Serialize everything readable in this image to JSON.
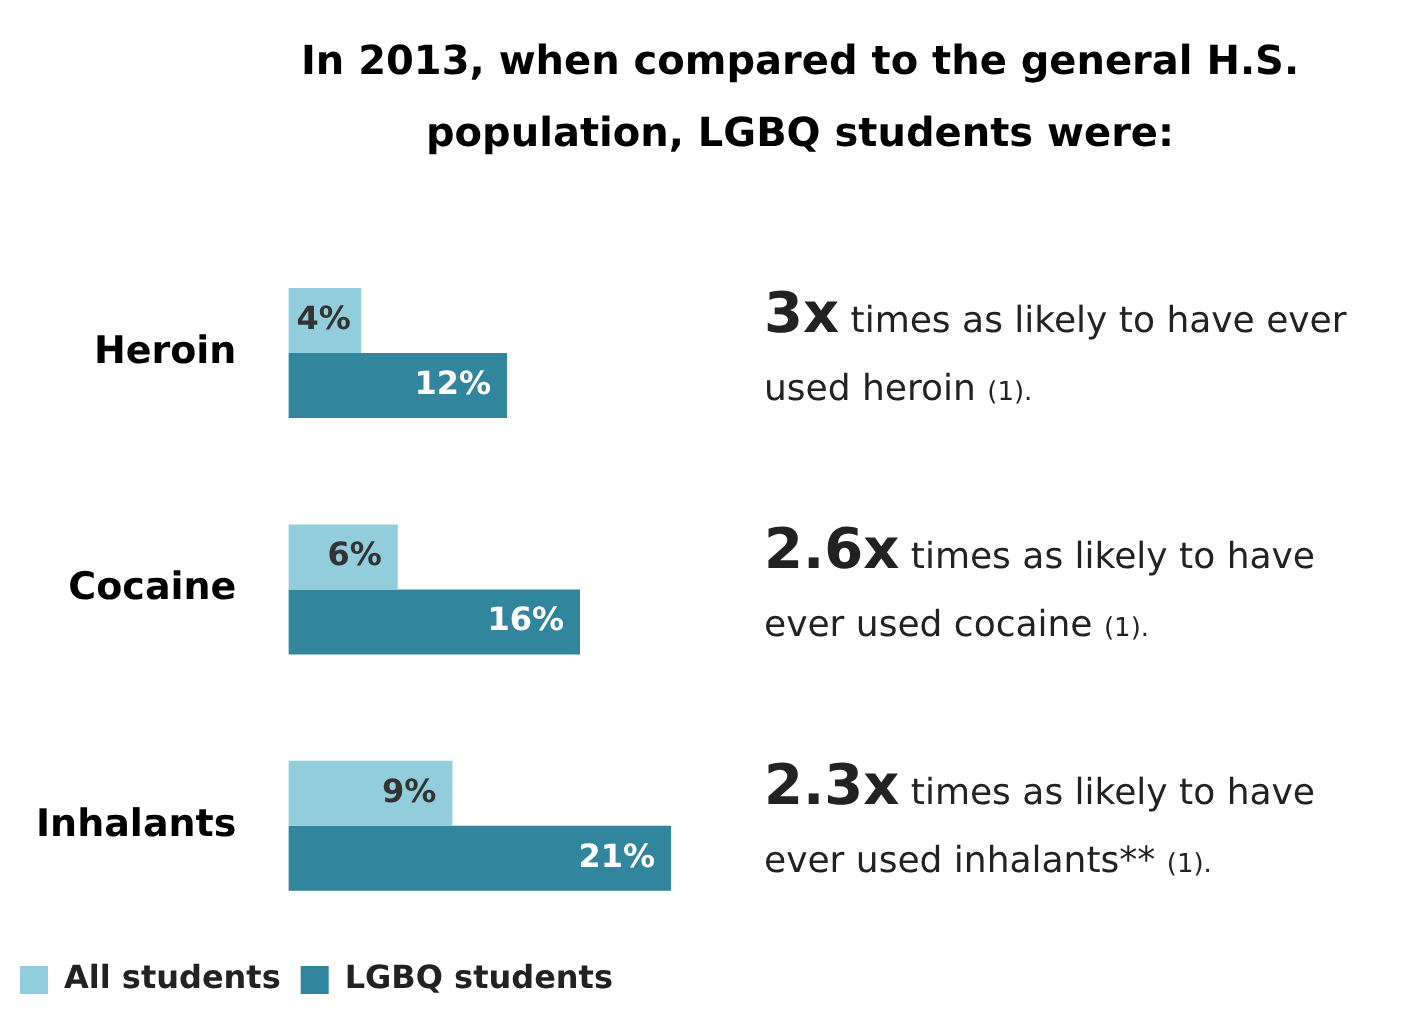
{
  "chart_data": {
    "type": "bar",
    "orientation": "horizontal",
    "title": "In 2013, when compared to the general H.S. population, LGBQ students were:",
    "categories": [
      "Heroin",
      "Cocaine",
      "Inhalants"
    ],
    "series": [
      {
        "name": "All students",
        "color": "#92cddc",
        "values": [
          4,
          6,
          9
        ],
        "value_labels": [
          "4%",
          "6%",
          "9%"
        ]
      },
      {
        "name": "LGBQ students",
        "color": "#31859c",
        "values": [
          12,
          16,
          21
        ],
        "value_labels": [
          "12%",
          "16%",
          "21%"
        ]
      }
    ],
    "legend": "bottom left",
    "grid": false,
    "annotations": [
      "3x times as likely to have ever used heroin (1).",
      "2.6x times as likely to have ever used cocaine (1).",
      "2.3x times as likely to have ever used inhalants** (1)."
    ]
  }
}
